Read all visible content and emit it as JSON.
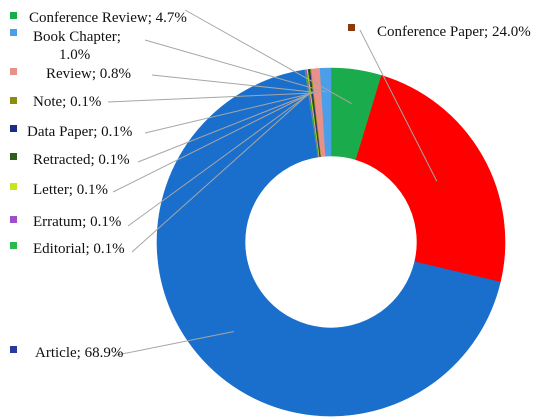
{
  "chart_data": {
    "type": "pie",
    "title": "",
    "slices": [
      {
        "label": "Conference Review",
        "value": 4.7,
        "text": "Conference Review; 4.7%",
        "color": "#1aab4c"
      },
      {
        "label": "Conference Paper",
        "value": 24.0,
        "text": "Conference Paper; 24.0%",
        "color": "#ff0000",
        "marker_color": "#8b3a0e"
      },
      {
        "label": "Article",
        "value": 68.9,
        "text": "Article; 68.9%",
        "color": "#1a6fcc",
        "marker_color": "#2a3a9c"
      },
      {
        "label": "Editorial",
        "value": 0.1,
        "text": "Editorial; 0.1%",
        "color": "#2db84d"
      },
      {
        "label": "Erratum",
        "value": 0.1,
        "text": "Erratum; 0.1%",
        "color": "#9b4fc9"
      },
      {
        "label": "Letter",
        "value": 0.1,
        "text": "Letter; 0.1%",
        "color": "#c8e619"
      },
      {
        "label": "Retracted",
        "value": 0.1,
        "text": "Retracted; 0.1%",
        "color": "#2e5e1a"
      },
      {
        "label": "Data Paper",
        "value": 0.1,
        "text": "Data Paper; 0.1%",
        "color": "#1d2c8a"
      },
      {
        "label": "Note",
        "value": 0.1,
        "text": "Note; 0.1%",
        "color": "#8c8c10"
      },
      {
        "label": "Review",
        "value": 0.8,
        "text": "Review; 0.8%",
        "color": "#e8918a"
      },
      {
        "label": "Book Chapter",
        "value": 1.0,
        "text": "Book Chapter; 1.0%",
        "text_lines": [
          "Book Chapter;",
          "1.0%"
        ],
        "color": "#4a9fe8"
      }
    ]
  }
}
